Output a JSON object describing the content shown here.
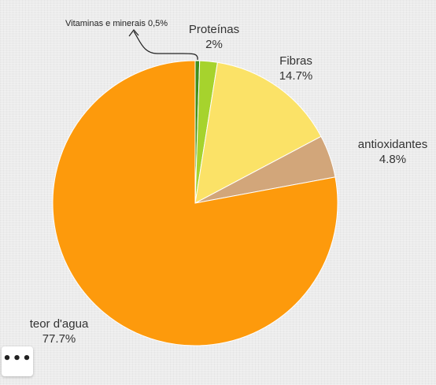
{
  "chart_data": {
    "type": "pie",
    "slices": [
      {
        "label": "Vitaminas e minerais",
        "value": 0.5,
        "value_label": "0,5%",
        "color": "#3f8f1b"
      },
      {
        "label": "Proteínas",
        "value": 2,
        "value_label": "2%",
        "color": "#a6d32d"
      },
      {
        "label": "Fibras",
        "value": 14.7,
        "value_label": "14.7%",
        "color": "#fbe267"
      },
      {
        "label": "antioxidantes",
        "value": 4.8,
        "value_label": "4.8%",
        "color": "#d2a67a"
      },
      {
        "label": "teor d'agua",
        "value": 77.7,
        "value_label": "77.7%",
        "color": "#fd9a0c"
      }
    ],
    "start_angle": "12 o'clock",
    "direction": "clockwise"
  },
  "toolbar": {
    "more_icon": "more-horizontal-icon",
    "more_glyph": "•••"
  }
}
